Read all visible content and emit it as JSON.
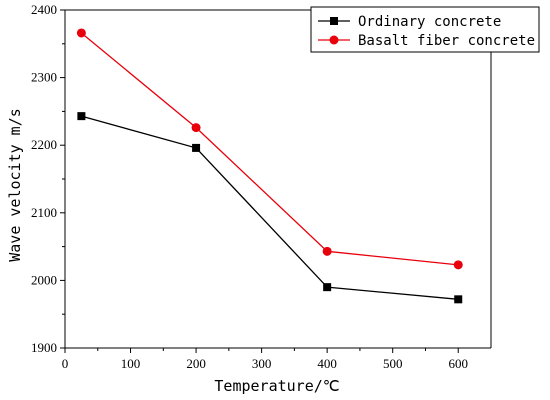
{
  "chart_data": {
    "type": "line",
    "title": "",
    "xlabel": "Temperature/℃",
    "ylabel": "Wave velocity m/s",
    "xlim": [
      0,
      650
    ],
    "ylim": [
      1900,
      2400
    ],
    "x_ticks": [
      0,
      100,
      200,
      300,
      400,
      500,
      600
    ],
    "y_ticks": [
      1900,
      2000,
      2100,
      2200,
      2300,
      2400
    ],
    "grid": false,
    "legend_position": "top-right",
    "x": [
      25,
      200,
      400,
      600
    ],
    "series": [
      {
        "name": "Ordinary concrete",
        "values": [
          2243,
          2196,
          1990,
          1972
        ],
        "color": "#000000",
        "marker": "square"
      },
      {
        "name": "Basalt fiber concrete",
        "values": [
          2366,
          2226,
          2043,
          2023
        ],
        "color": "#e8000b",
        "marker": "circle"
      }
    ]
  }
}
